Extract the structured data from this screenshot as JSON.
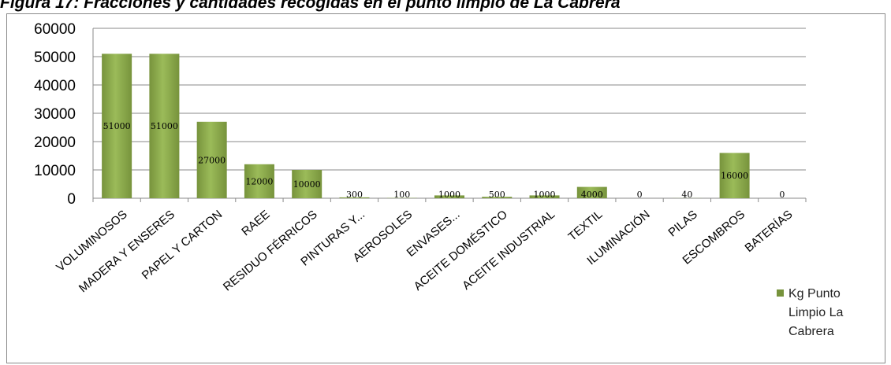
{
  "caption": "Figura 17:  Fracciones y cantidades recogidas en el punto limpio de La Cabrera",
  "chart_data": {
    "type": "bar",
    "categories": [
      "VOLUMINOSOS",
      "MADERA Y ENSERES",
      "PAPEL Y CARTON",
      "RAEE",
      "RESIDUO FÉRRICOS",
      "PINTURAS Y...",
      "AEROSOLES",
      "ENVASES...",
      "ACEITE DOMÉSTICO",
      "ACEITE INDUSTRIAL",
      "TEXTIL",
      "ILUMINACIÓN",
      "PILAS",
      "ESCOMBROS",
      "BATERÍAS"
    ],
    "series": [
      {
        "name": "Kg Punto Limpio La Cabrera",
        "values": [
          51000,
          51000,
          27000,
          12000,
          10000,
          300,
          100,
          1000,
          500,
          1000,
          4000,
          0,
          40,
          16000,
          0
        ],
        "labels": [
          "51000",
          "51000",
          "27000",
          "12000",
          "10000",
          "300",
          "100",
          "1000",
          "500",
          "1000",
          "4000",
          "0",
          "40",
          "16000",
          "0"
        ]
      }
    ],
    "ylim": [
      0,
      60000
    ],
    "yticks": [
      "0",
      "10000",
      "20000",
      "30000",
      "40000",
      "50000",
      "60000"
    ],
    "grid": true,
    "legend_position": "right",
    "legend_lines": [
      "Kg Punto",
      "Limpio La",
      "Cabrera"
    ],
    "bar_color": "#77933c",
    "bar_highlight": "#9bbb59",
    "gridline_color": "#8a8a8a"
  }
}
